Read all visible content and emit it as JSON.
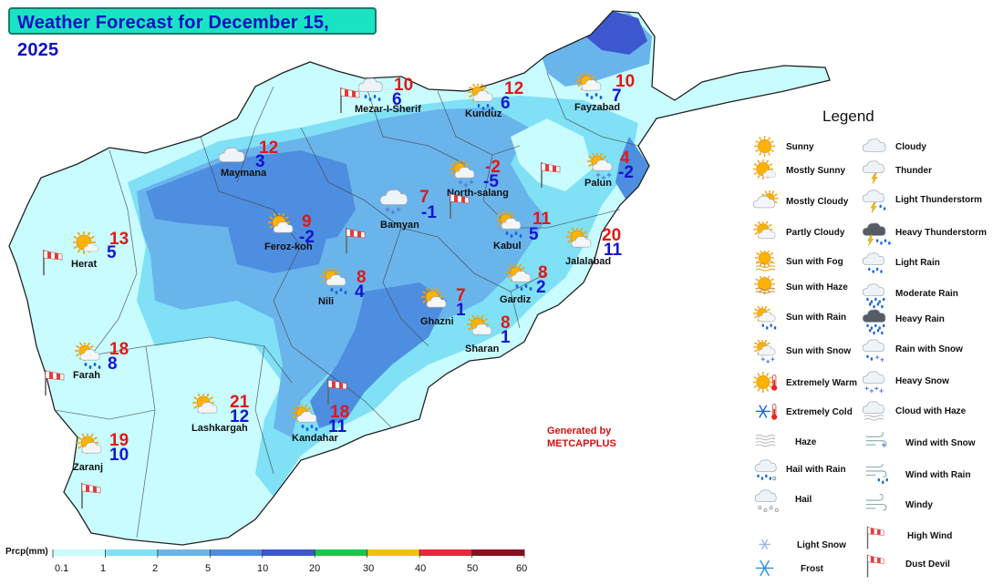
{
  "title": "Weather Forecast for December 15, 2025",
  "legend": {
    "title": "Legend",
    "col1": [
      "Sunny",
      "Mostly Sunny",
      "Mostly Cloudy",
      "Partly Cloudy",
      "Sun with Fog",
      "Sun with Haze",
      "Sun with Rain",
      "Sun with Snow",
      "Extremely Warm",
      "Extremely Cold",
      "Haze",
      "Hail with Rain",
      "Hail",
      "Light Snow",
      "Frost"
    ],
    "col2": [
      "Cloudy",
      "Thunder",
      "Light Thunderstorm",
      "Heavy Thunderstorm",
      "Light Rain",
      "Moderate Rain",
      "Heavy Rain",
      "Rain with Snow",
      "Heavy Snow",
      "Cloud with Haze",
      "Wind with Snow",
      "Wind with Rain",
      "Windy",
      "High Wind",
      "Dust Devil"
    ]
  },
  "generated": [
    "Generated by",
    "METCAPPLUS"
  ],
  "colorbar": {
    "label": "Prcp(mm)",
    "ticks": [
      "0.1",
      "1",
      "2",
      "5",
      "10",
      "20",
      "30",
      "40",
      "50",
      "60"
    ],
    "colors": [
      "#c8fcff",
      "#7fe0f6",
      "#6ab4ec",
      "#4e8ee0",
      "#3d57cf",
      "#19c84a",
      "#f2c012",
      "#e8283a",
      "#8a1020"
    ]
  },
  "cities": [
    {
      "name": "Mezar-I-Sherif",
      "max": "10",
      "min": "6",
      "icon": "light-rain"
    },
    {
      "name": "Kunduz",
      "max": "12",
      "min": "6",
      "icon": "sun-with-rain"
    },
    {
      "name": "Fayzabad",
      "max": "10",
      "min": "7",
      "icon": "sun-with-rain"
    },
    {
      "name": "Maymana",
      "max": "12",
      "min": "3",
      "icon": "cloudy"
    },
    {
      "name": "North-salang",
      "max": "-2",
      "min": "-5",
      "icon": "sun-with-snow"
    },
    {
      "name": "Palun",
      "max": "4",
      "min": "-2",
      "icon": "sun-with-snow"
    },
    {
      "name": "Bamyan",
      "max": "7",
      "min": "-1",
      "icon": "light-snow-cloud"
    },
    {
      "name": "Feroz-koh",
      "max": "9",
      "min": "-2",
      "icon": "partly-cloudy"
    },
    {
      "name": "Kabul",
      "max": "11",
      "min": "5",
      "icon": "sun-with-rain"
    },
    {
      "name": "Jalalabad",
      "max": "20",
      "min": "11",
      "icon": "partly-cloudy"
    },
    {
      "name": "Herat",
      "max": "13",
      "min": "5",
      "icon": "mostly-sunny"
    },
    {
      "name": "Nili",
      "max": "8",
      "min": "4",
      "icon": "sun-with-rain"
    },
    {
      "name": "Gardiz",
      "max": "8",
      "min": "2",
      "icon": "sun-with-rain"
    },
    {
      "name": "Ghazni",
      "max": "7",
      "min": "1",
      "icon": "partly-cloudy"
    },
    {
      "name": "Sharan",
      "max": "8",
      "min": "1",
      "icon": "partly-cloudy"
    },
    {
      "name": "Farah",
      "max": "18",
      "min": "8",
      "icon": "sun-with-rain"
    },
    {
      "name": "Lashkargah",
      "max": "21",
      "min": "12",
      "icon": "partly-cloudy"
    },
    {
      "name": "Kandahar",
      "max": "18",
      "min": "11",
      "icon": "sun-with-rain"
    },
    {
      "name": "Zaranj",
      "max": "19",
      "min": "10",
      "icon": "partly-cloudy"
    }
  ],
  "wind_icons": "high-wind-icon"
}
